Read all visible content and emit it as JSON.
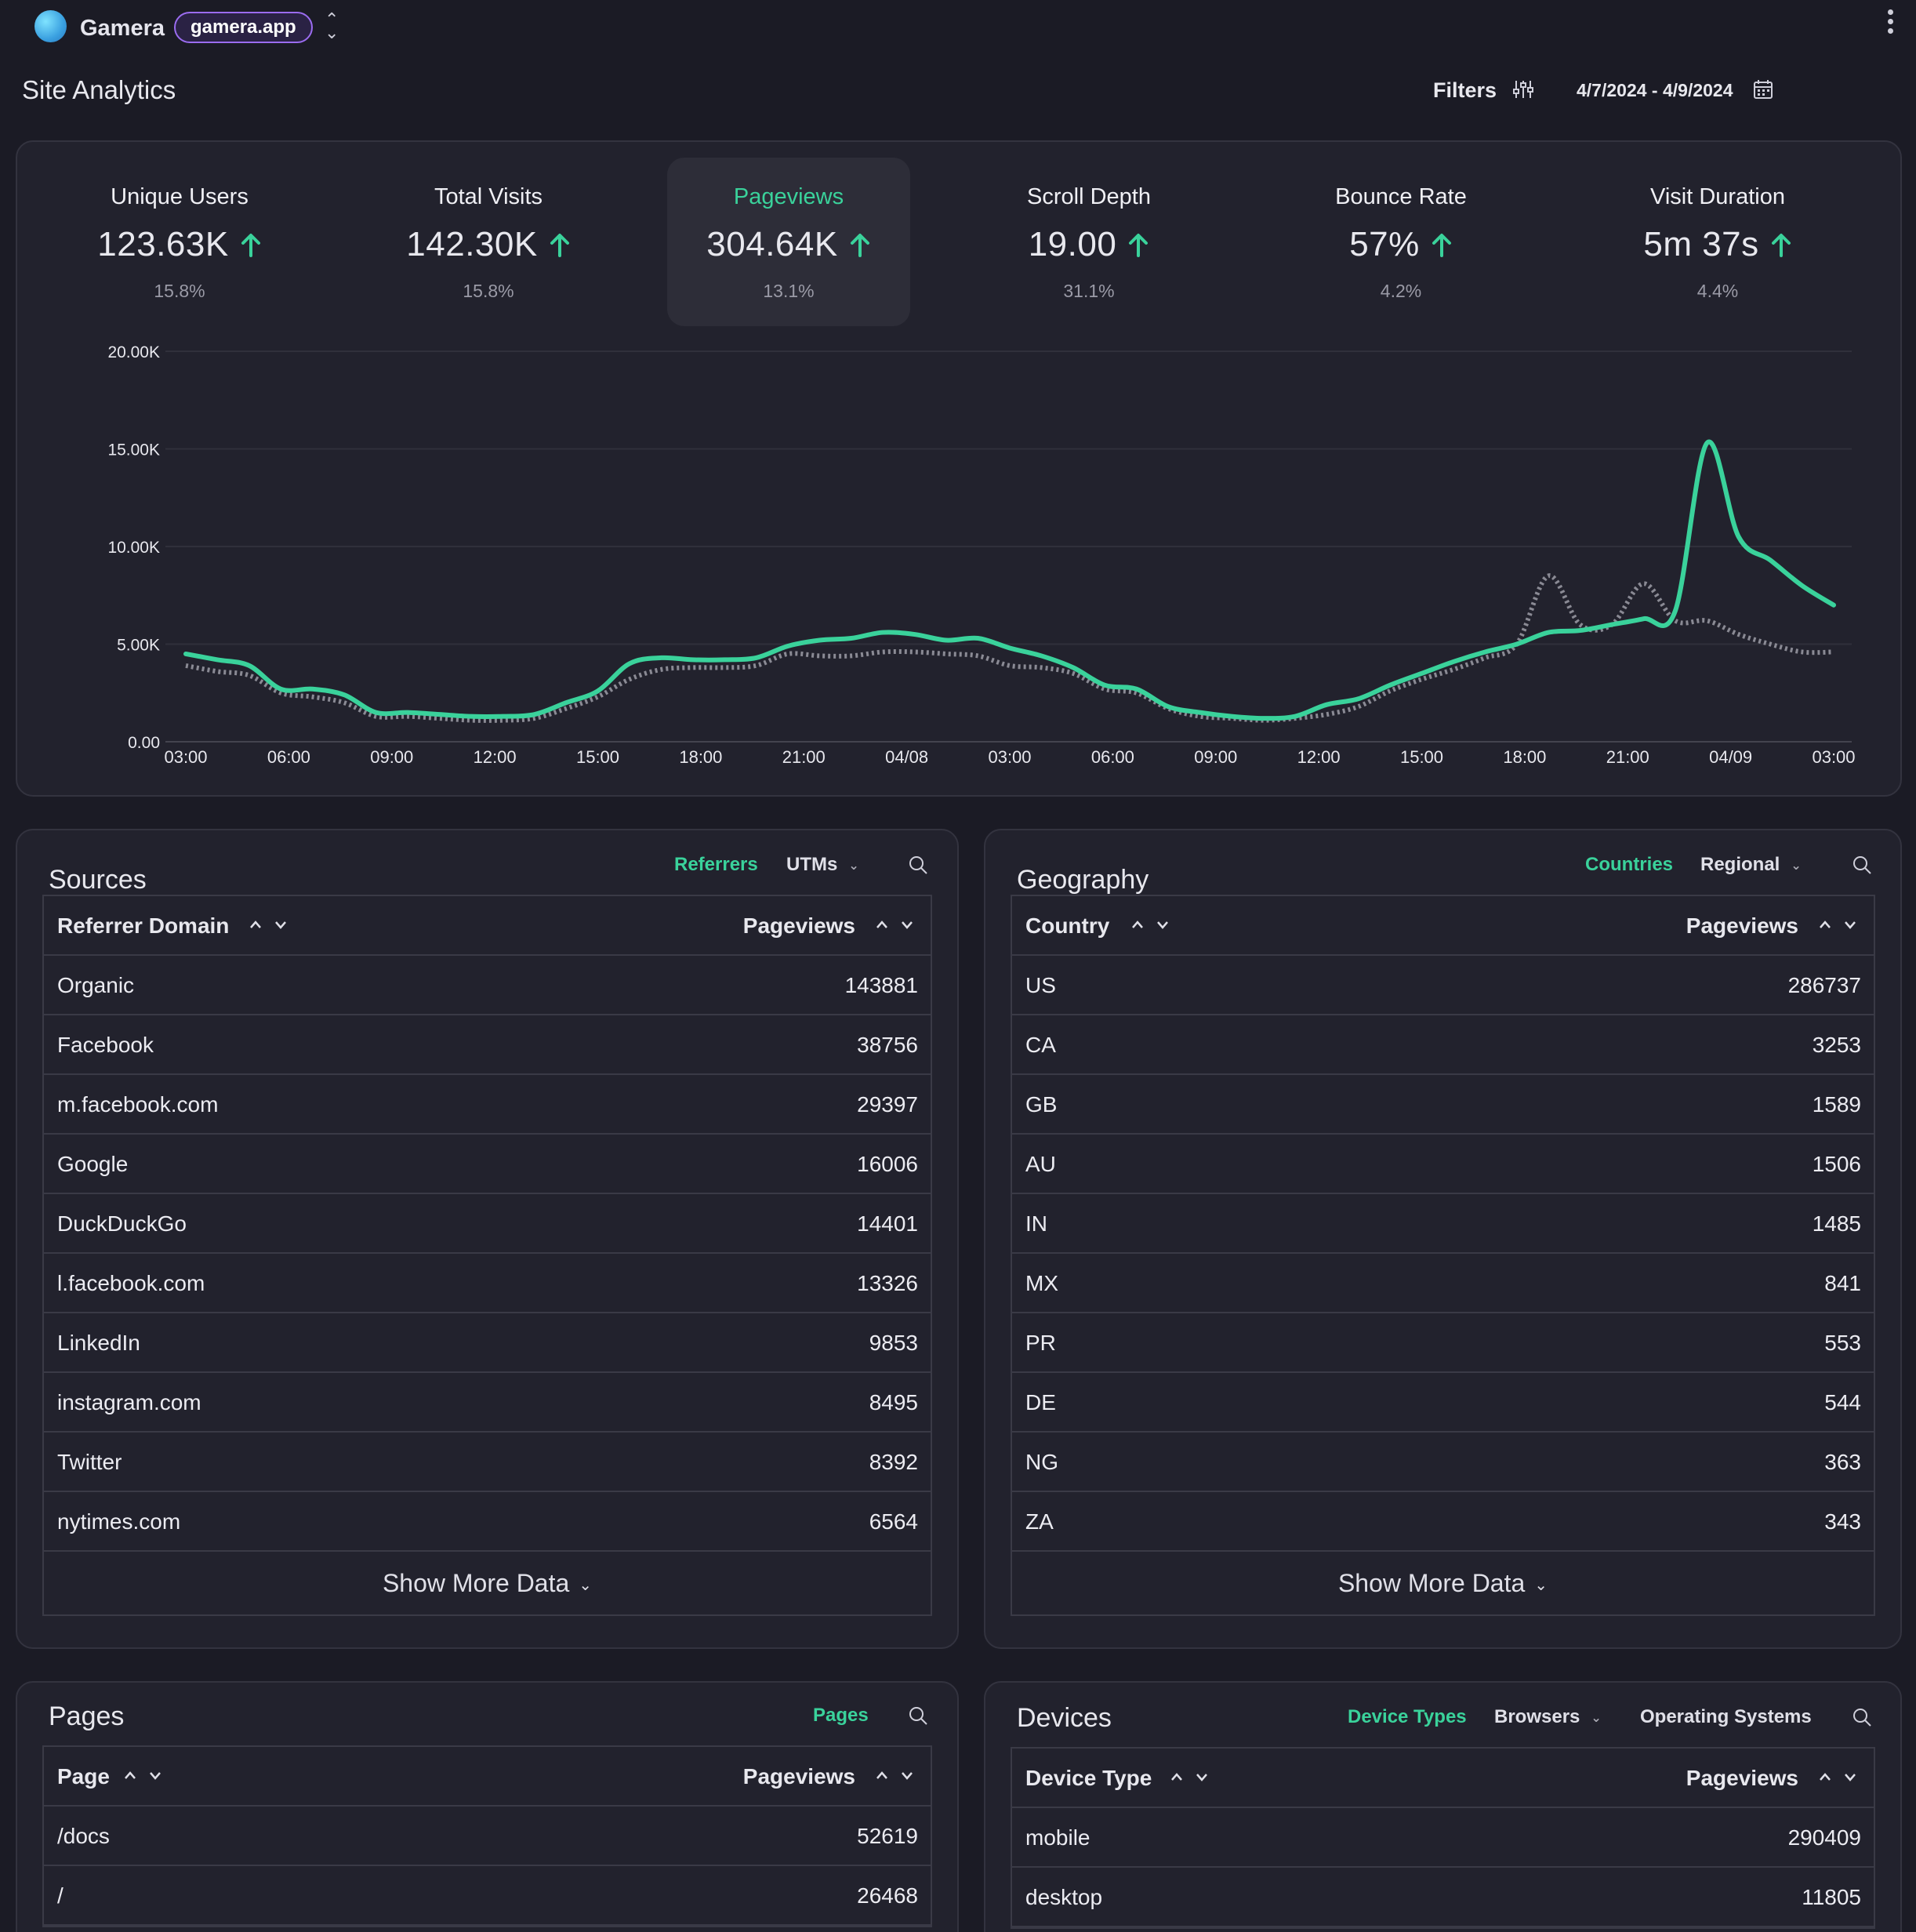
{
  "app": {
    "name": "Gamera",
    "domain": "gamera.app",
    "page_title": "Site Analytics",
    "filters_label": "Filters",
    "date_range": "4/7/2024 - 4/9/2024",
    "accent_color": "#3ad29b"
  },
  "metrics": [
    {
      "label": "Unique Users",
      "value": "123.63K",
      "change": "15.8%",
      "trend": "up"
    },
    {
      "label": "Total Visits",
      "value": "142.30K",
      "change": "15.8%",
      "trend": "up"
    },
    {
      "label": "Pageviews",
      "value": "304.64K",
      "change": "13.1%",
      "trend": "up",
      "active": true
    },
    {
      "label": "Scroll Depth",
      "value": "19.00",
      "change": "31.1%",
      "trend": "up"
    },
    {
      "label": "Bounce Rate",
      "value": "57%",
      "change": "4.2%",
      "trend": "up"
    },
    {
      "label": "Visit Duration",
      "value": "5m 37s",
      "change": "4.4%",
      "trend": "up"
    }
  ],
  "chart_data": {
    "type": "line",
    "y_tick_labels": [
      "0.00",
      "5.00K",
      "10.00K",
      "15.00K",
      "20.00K"
    ],
    "x_tick_labels": [
      "03:00",
      "06:00",
      "09:00",
      "12:00",
      "15:00",
      "18:00",
      "21:00",
      "04/08",
      "03:00",
      "06:00",
      "09:00",
      "12:00",
      "15:00",
      "18:00",
      "21:00",
      "04/09",
      "03:00"
    ],
    "ylim": [
      0,
      20000
    ],
    "grid": true,
    "series": [
      {
        "color": "#3ad29b",
        "style": "solid",
        "values": [
          4500,
          4200,
          3900,
          2700,
          2700,
          2400,
          1500,
          1500,
          1400,
          1300,
          1300,
          1400,
          2000,
          2600,
          4000,
          4300,
          4200,
          4200,
          4300,
          4900,
          5200,
          5300,
          5600,
          5500,
          5200,
          5300,
          4800,
          4400,
          3800,
          2900,
          2700,
          1800,
          1500,
          1300,
          1200,
          1300,
          1900,
          2200,
          2900,
          3500,
          4100,
          4600,
          5000,
          5600,
          5700,
          6000,
          6300,
          6700,
          15300,
          10500,
          9300,
          8000,
          7000
        ]
      },
      {
        "color": "#8a8a94",
        "style": "dotted",
        "values": [
          3900,
          3600,
          3400,
          2500,
          2300,
          2000,
          1300,
          1300,
          1200,
          1100,
          1100,
          1200,
          1700,
          2300,
          3200,
          3700,
          3800,
          3800,
          3900,
          4500,
          4400,
          4400,
          4600,
          4600,
          4500,
          4400,
          3900,
          3800,
          3500,
          2700,
          2500,
          1700,
          1300,
          1200,
          1100,
          1200,
          1400,
          1800,
          2600,
          3200,
          3700,
          4300,
          5000,
          8500,
          6000,
          6000,
          8100,
          6200,
          6200,
          5500,
          5000,
          4600,
          4600
        ]
      }
    ]
  },
  "sources": {
    "title": "Sources",
    "tabs": [
      "Referrers",
      "UTMs"
    ],
    "col_left": "Referrer Domain",
    "col_right": "Pageviews",
    "rows": [
      {
        "name": "Organic",
        "value": "143881"
      },
      {
        "name": "Facebook",
        "value": "38756"
      },
      {
        "name": "m.facebook.com",
        "value": "29397"
      },
      {
        "name": "Google",
        "value": "16006"
      },
      {
        "name": "DuckDuckGo",
        "value": "14401"
      },
      {
        "name": "l.facebook.com",
        "value": "13326"
      },
      {
        "name": "LinkedIn",
        "value": "9853"
      },
      {
        "name": "instagram.com",
        "value": "8495"
      },
      {
        "name": "Twitter",
        "value": "8392"
      },
      {
        "name": "nytimes.com",
        "value": "6564"
      }
    ],
    "show_more": "Show More Data"
  },
  "geography": {
    "title": "Geography",
    "tabs": [
      "Countries",
      "Regional"
    ],
    "col_left": "Country",
    "col_right": "Pageviews",
    "rows": [
      {
        "name": "US",
        "value": "286737"
      },
      {
        "name": "CA",
        "value": "3253"
      },
      {
        "name": "GB",
        "value": "1589"
      },
      {
        "name": "AU",
        "value": "1506"
      },
      {
        "name": "IN",
        "value": "1485"
      },
      {
        "name": "MX",
        "value": "841"
      },
      {
        "name": "PR",
        "value": "553"
      },
      {
        "name": "DE",
        "value": "544"
      },
      {
        "name": "NG",
        "value": "363"
      },
      {
        "name": "ZA",
        "value": "343"
      }
    ],
    "show_more": "Show More Data"
  },
  "pages": {
    "title": "Pages",
    "tabs": [
      "Pages"
    ],
    "col_left": "Page",
    "col_right": "Pageviews",
    "rows": [
      {
        "name": "/docs",
        "value": "52619"
      },
      {
        "name": "/",
        "value": "26468"
      }
    ]
  },
  "devices": {
    "title": "Devices",
    "tabs": [
      "Device Types",
      "Browsers",
      "Operating Systems"
    ],
    "col_left": "Device Type",
    "col_right": "Pageviews",
    "rows": [
      {
        "name": "mobile",
        "value": "290409"
      },
      {
        "name": "desktop",
        "value": "11805"
      }
    ]
  }
}
